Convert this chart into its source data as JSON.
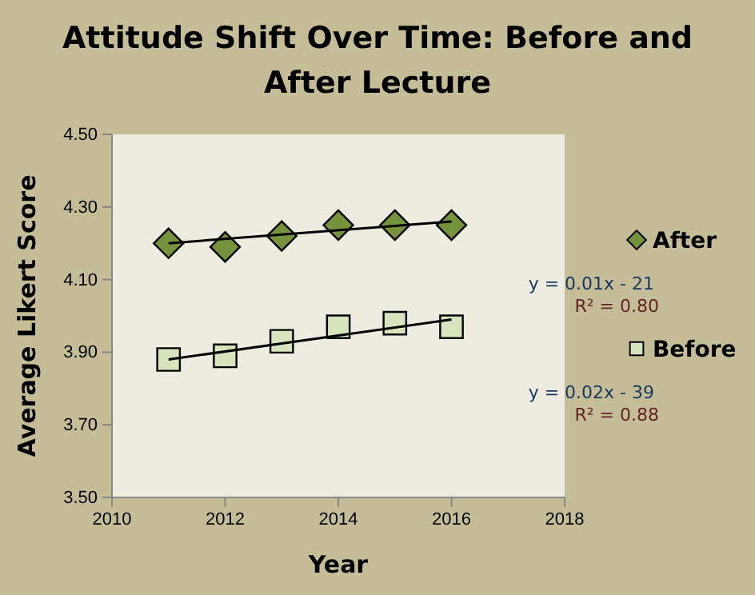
{
  "chart_data": {
    "type": "scatter",
    "title": "Attitude Shift Over Time: Before and After Lecture",
    "xlabel": "Year",
    "ylabel": "Average Likert Score",
    "xlim": [
      2010,
      2018
    ],
    "xticks": [
      2010,
      2012,
      2014,
      2016,
      2018
    ],
    "ylim": [
      3.5,
      4.5
    ],
    "yticks": [
      {
        "value": 3.5,
        "label": "3.50"
      },
      {
        "value": 3.7,
        "label": "3.70"
      },
      {
        "value": 3.9,
        "label": "3.90"
      },
      {
        "value": 4.1,
        "label": "4.10"
      },
      {
        "value": 4.3,
        "label": "4.30"
      },
      {
        "value": 4.5,
        "label": "4.50"
      }
    ],
    "series": [
      {
        "name": "After",
        "marker": "diamond",
        "color": "#76923c",
        "x": [
          2011,
          2012,
          2013,
          2014,
          2015,
          2016
        ],
        "values": [
          4.2,
          4.19,
          4.22,
          4.25,
          4.25,
          4.25
        ]
      },
      {
        "name": "Before",
        "marker": "square",
        "color": "#d7e4bd",
        "x": [
          2011,
          2012,
          2013,
          2014,
          2015,
          2016
        ],
        "values": [
          3.88,
          3.89,
          3.93,
          3.97,
          3.98,
          3.97
        ]
      },
      {
        "type": "line",
        "marker": "none",
        "color": "#000000",
        "x": [
          2011,
          2016
        ],
        "values": [
          4.2,
          4.26
        ]
      },
      {
        "type": "line",
        "marker": "none",
        "color": "#000000",
        "x": [
          2011,
          2016
        ],
        "values": [
          3.88,
          3.99
        ]
      }
    ],
    "annotations": [
      "y = 0.01x - 21",
      "R² = 0.80",
      "y = 0.02x - 39",
      "R² = 0.88"
    ],
    "legend": "right",
    "grid": false
  }
}
